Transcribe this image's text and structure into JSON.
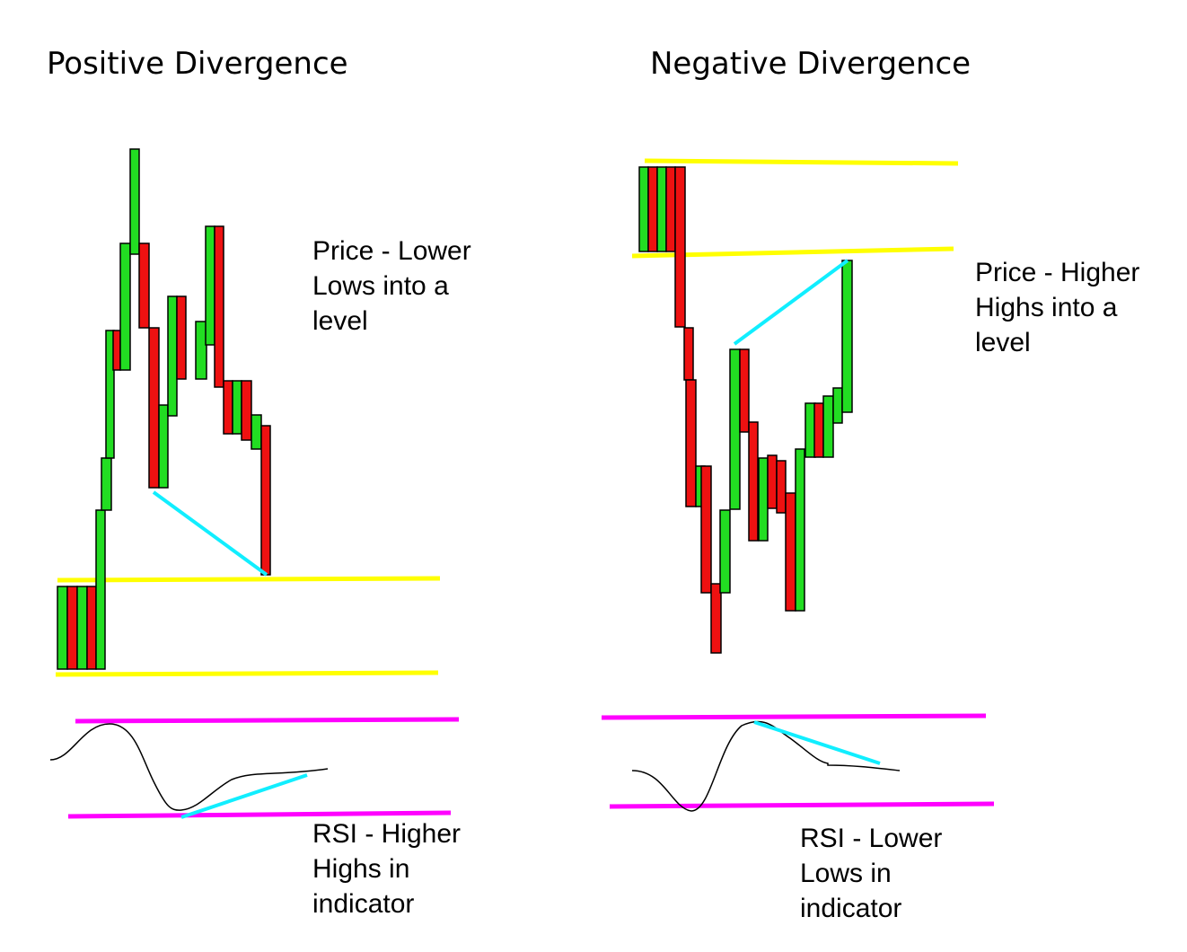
{
  "colors": {
    "up_bar": "#22dd22",
    "down_bar": "#ee1111",
    "level_line": "#ffff00",
    "rsi_band": "#ff00ff",
    "divergence_line": "#11eeff",
    "rsi_curve": "#000000"
  },
  "positive": {
    "title": "Positive Divergence",
    "price_note": [
      "Price - Lower",
      "Lows into a",
      "level"
    ],
    "rsi_note": [
      "RSI - Higher",
      "Highs in",
      "indicator"
    ]
  },
  "negative": {
    "title": "Negative Divergence",
    "price_note": [
      "Price - Higher",
      "Highs into a",
      "level"
    ],
    "rsi_note": [
      "RSI - Lower",
      "Lows in",
      "indicator"
    ]
  }
}
